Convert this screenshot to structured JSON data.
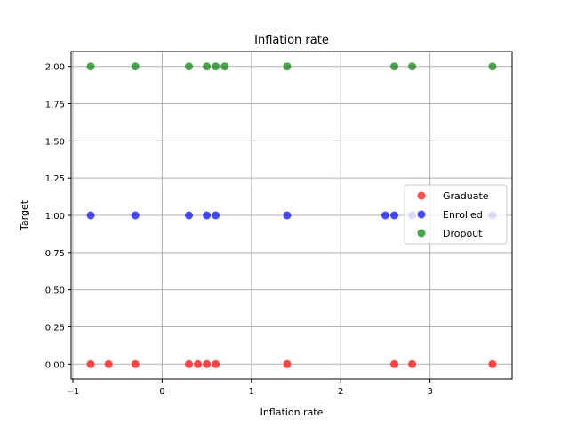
{
  "chart_data": {
    "type": "scatter",
    "title": "Inflation rate",
    "xlabel": "Inflation rate",
    "ylabel": "Target",
    "xlim": [
      -1.02,
      3.92
    ],
    "ylim": [
      -0.1,
      2.1
    ],
    "x_ticks": [
      -1,
      0,
      1,
      2,
      3
    ],
    "y_ticks": [
      0.0,
      0.25,
      0.5,
      0.75,
      1.0,
      1.25,
      1.5,
      1.75,
      2.0
    ],
    "x_tick_labels": [
      "−1",
      "0",
      "1",
      "2",
      "3"
    ],
    "y_tick_labels": [
      "0.00",
      "0.25",
      "0.50",
      "0.75",
      "1.00",
      "1.25",
      "1.50",
      "1.75",
      "2.00"
    ],
    "grid": true,
    "legend_position": "center-right",
    "series": [
      {
        "name": "Graduate",
        "color": "#ff0000",
        "points": [
          {
            "x": -0.8,
            "y": 0
          },
          {
            "x": -0.6,
            "y": 0
          },
          {
            "x": -0.3,
            "y": 0
          },
          {
            "x": 0.3,
            "y": 0
          },
          {
            "x": 0.4,
            "y": 0
          },
          {
            "x": 0.5,
            "y": 0
          },
          {
            "x": 0.6,
            "y": 0
          },
          {
            "x": 1.4,
            "y": 0
          },
          {
            "x": 2.6,
            "y": 0
          },
          {
            "x": 2.8,
            "y": 0
          },
          {
            "x": 3.7,
            "y": 0
          }
        ]
      },
      {
        "name": "Enrolled",
        "color": "#0000ff",
        "points": [
          {
            "x": -0.8,
            "y": 1
          },
          {
            "x": -0.3,
            "y": 1
          },
          {
            "x": 0.3,
            "y": 1
          },
          {
            "x": 0.5,
            "y": 1
          },
          {
            "x": 0.6,
            "y": 1
          },
          {
            "x": 1.4,
            "y": 1
          },
          {
            "x": 2.5,
            "y": 1
          },
          {
            "x": 2.6,
            "y": 1
          },
          {
            "x": 2.8,
            "y": 1
          },
          {
            "x": 3.7,
            "y": 1
          }
        ]
      },
      {
        "name": "Dropout",
        "color": "#008000",
        "points": [
          {
            "x": -0.8,
            "y": 2
          },
          {
            "x": -0.3,
            "y": 2
          },
          {
            "x": 0.3,
            "y": 2
          },
          {
            "x": 0.5,
            "y": 2
          },
          {
            "x": 0.6,
            "y": 2
          },
          {
            "x": 0.7,
            "y": 2
          },
          {
            "x": 1.4,
            "y": 2
          },
          {
            "x": 2.6,
            "y": 2
          },
          {
            "x": 2.8,
            "y": 2
          },
          {
            "x": 3.7,
            "y": 2
          }
        ]
      }
    ]
  }
}
